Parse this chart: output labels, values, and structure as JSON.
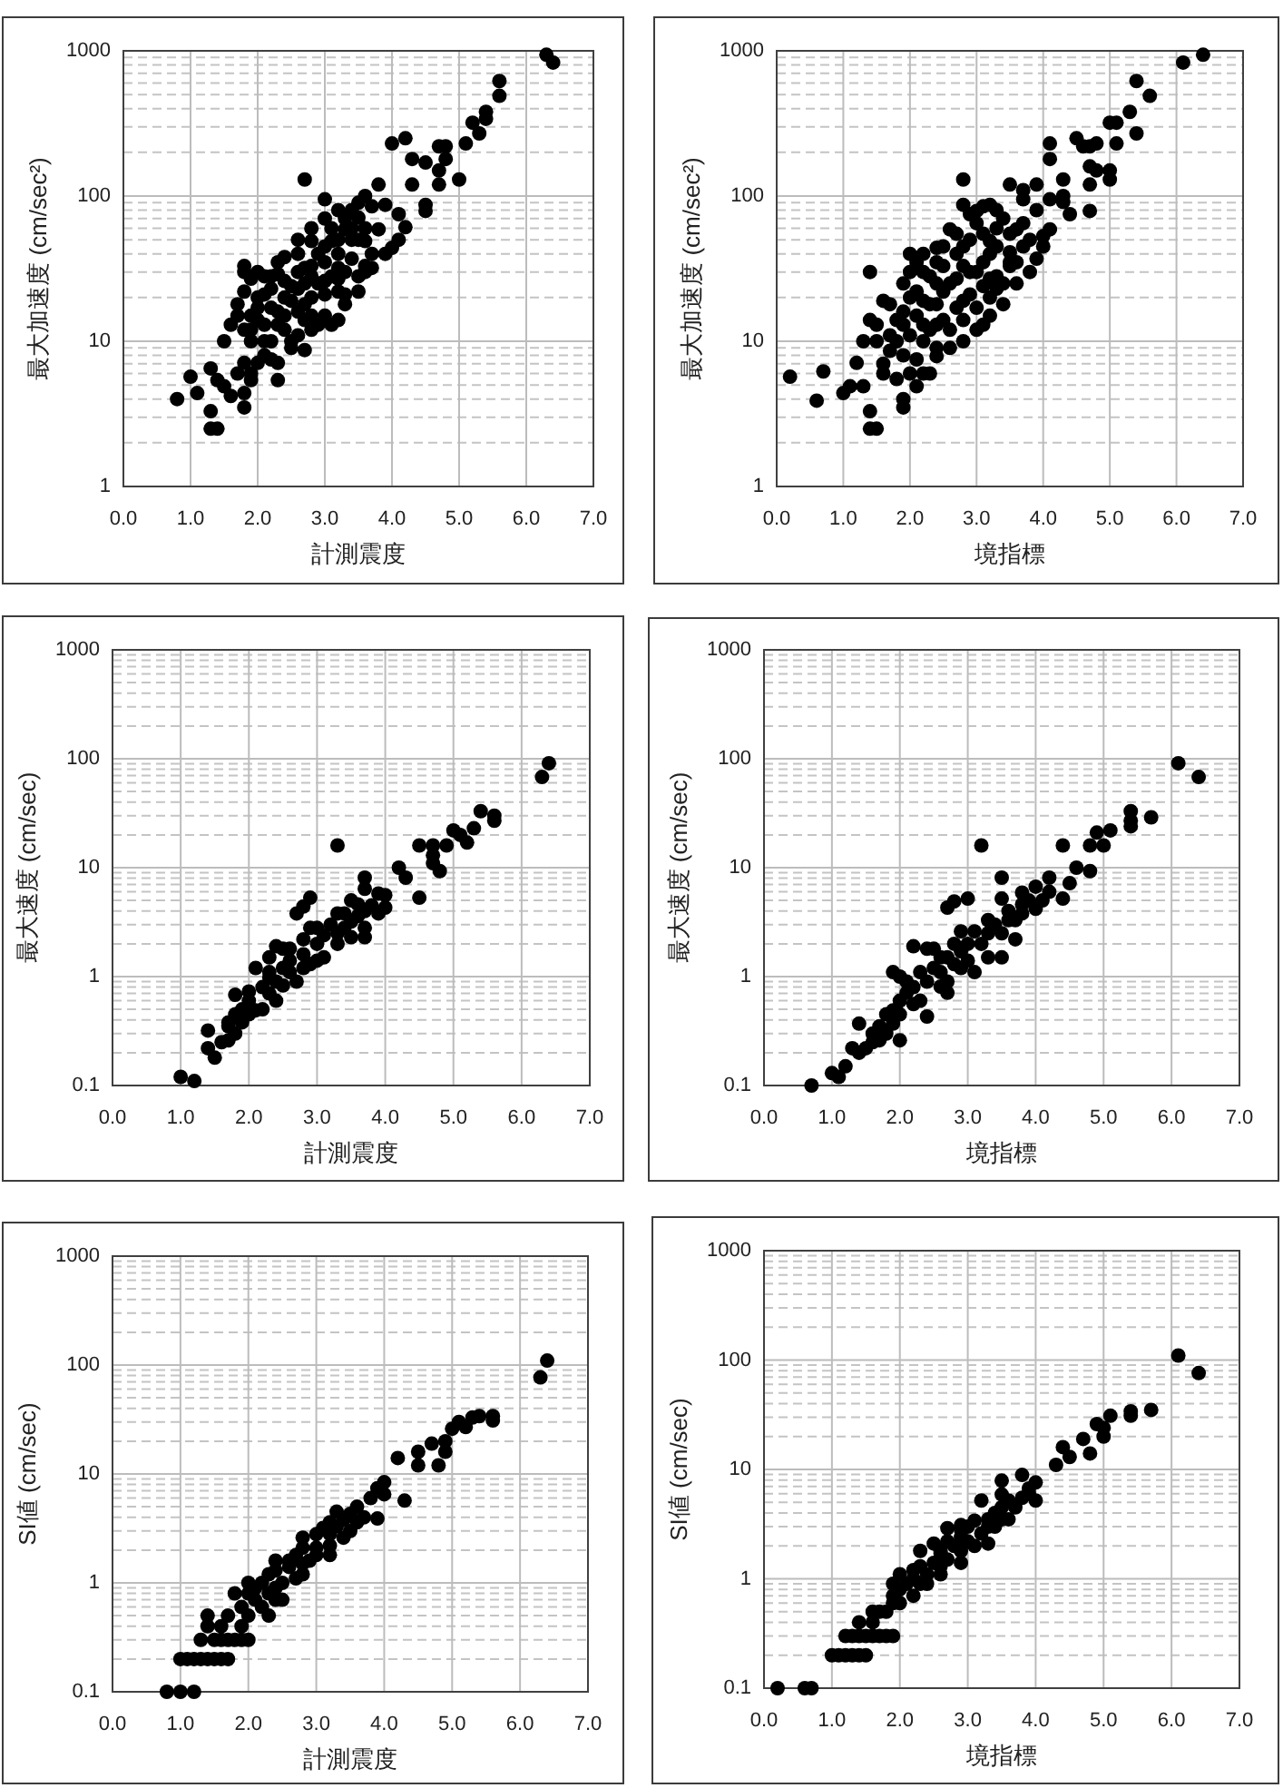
{
  "chart_data": [
    {
      "type": "scatter",
      "xlabel": "計測震度",
      "ylabel": "最大加速度 (cm/sec²)",
      "color": "#000000",
      "marker": "circle",
      "log": "y",
      "grid": true,
      "xlim": [
        0,
        7
      ],
      "ylim": [
        1,
        1000
      ],
      "xticks": [
        {
          "value": 0,
          "label": "0.0"
        },
        {
          "value": 1,
          "label": "1.0"
        },
        {
          "value": 2,
          "label": "2.0"
        },
        {
          "value": 3,
          "label": "3.0"
        },
        {
          "value": 4,
          "label": "4.0"
        },
        {
          "value": 5,
          "label": "5.0"
        },
        {
          "value": 6,
          "label": "6.0"
        },
        {
          "value": 7,
          "label": "7.0"
        }
      ],
      "yticks": [
        1,
        10,
        100,
        1000
      ],
      "x": [
        0.8,
        1.0,
        1.3,
        1.3,
        1.4,
        1.1,
        1.3,
        1.5,
        1.8,
        1.8,
        1.6,
        1.8,
        1.8,
        1.9,
        2.3,
        2.7,
        4.0,
        4.2,
        4.3,
        4.5,
        4.7,
        4.8,
        4.8,
        4.7,
        4.7,
        5.0,
        5.1,
        5.2,
        5.3,
        5.4,
        5.4,
        5.6,
        5.6,
        6.3,
        6.4,
        4.3,
        4.5,
        4.5,
        4.0,
        4.2,
        3.6,
        3.6,
        3.3,
        3.2,
        3.1,
        2.7,
        2.3,
        3.0,
        3.6,
        3.8,
        3.5,
        2.4,
        2.3,
        2.0,
        1.9,
        1.7,
        1.5,
        1.8,
        2.0,
        2.3,
        2.5,
        2.7,
        2.8,
        3.1,
        3.3,
        3.6,
        3.7,
        3.8,
        3.2,
        2.8,
        2.5,
        2.1,
        1.9,
        2.1,
        1.9,
        1.4,
        2.7,
        3.0,
        3.4,
        2.8,
        3.9,
        4.1,
        1.6,
        1.7,
        1.8,
        2.2,
        2.6,
        3.0,
        3.2,
        3.4,
        1.7,
        1.9,
        2.1,
        2.5,
        2.9,
        3.3,
        3.5,
        3.9,
        4.1,
        1.8,
        2.0,
        2.2,
        2.4,
        2.6,
        2.8,
        3.0,
        3.2,
        3.4,
        3.6,
        2.2,
        2.4,
        2.6,
        2.8,
        3.0,
        3.2,
        2.0,
        2.2,
        2.4,
        2.6,
        2.9,
        3.1,
        3.3,
        3.5,
        3.7,
        1.9,
        2.0,
        2.1,
        2.1,
        2.2,
        2.3,
        2.3,
        2.4,
        2.5,
        2.6,
        2.6,
        2.7,
        2.7,
        2.8,
        2.8,
        2.9,
        3.0,
        3.0,
        3.1,
        3.2,
        3.2,
        3.3,
        3.4,
        3.5,
        3.5,
        3.7
      ],
      "values": [
        4.0,
        5.7,
        3.3,
        2.5,
        2.5,
        4.4,
        6.5,
        4.9,
        3.5,
        4.4,
        4.2,
        33,
        30,
        5.4,
        5.4,
        130,
        230,
        250,
        180,
        170,
        220,
        220,
        180,
        150,
        120,
        130,
        230,
        320,
        270,
        380,
        340,
        490,
        620,
        940,
        830,
        120,
        87,
        79,
        44,
        61,
        33,
        30,
        21,
        14,
        13,
        8.7,
        7.1,
        95,
        100,
        120,
        71,
        38,
        29,
        30,
        27,
        15,
        10,
        7.1,
        7.1,
        13,
        19,
        25,
        33,
        49,
        59,
        49,
        40,
        59,
        27,
        15,
        10,
        10,
        15,
        21,
        10,
        5.4,
        14,
        21,
        37,
        49,
        87,
        75,
        13,
        18,
        22,
        28,
        40,
        70,
        80,
        80,
        6,
        6,
        8,
        9,
        13,
        18,
        22,
        40,
        50,
        12,
        14,
        17,
        20,
        23,
        28,
        35,
        40,
        50,
        60,
        10,
        12,
        16,
        20,
        26,
        32,
        20,
        23,
        26,
        30,
        40,
        60,
        70,
        90,
        85,
        12,
        17,
        13,
        28,
        7.5,
        16,
        35,
        15,
        24,
        11,
        50,
        18,
        32,
        12,
        60,
        25,
        15,
        45,
        28,
        22,
        50,
        30,
        60,
        28,
        50,
        32
      ]
    },
    {
      "type": "scatter",
      "xlabel": "境指標",
      "ylabel": "最大加速度 (cm/sec²)",
      "color": "#000000",
      "marker": "circle",
      "log": "y",
      "grid": true,
      "xlim": [
        0,
        7
      ],
      "ylim": [
        1,
        1000
      ],
      "xticks": [
        {
          "value": 0,
          "label": "0.0"
        },
        {
          "value": 1,
          "label": "1.0"
        },
        {
          "value": 2,
          "label": "2.0"
        },
        {
          "value": 3,
          "label": "3.0"
        },
        {
          "value": 4,
          "label": "4.0"
        },
        {
          "value": 5,
          "label": "5.0"
        },
        {
          "value": 6,
          "label": "6.0"
        },
        {
          "value": 7,
          "label": "7.0"
        }
      ],
      "yticks": [
        1,
        10,
        100,
        1000
      ],
      "x": [
        0.2,
        0.6,
        0.7,
        1.0,
        1.4,
        1.4,
        1.4,
        1.5,
        1.9,
        1.1,
        1.3,
        1.2,
        1.6,
        2.0,
        2.2,
        2.8,
        2.8,
        3.0,
        3.5,
        4.1,
        4.1,
        4.3,
        4.5,
        4.6,
        4.7,
        4.8,
        4.7,
        4.8,
        4.7,
        4.7,
        5.0,
        5.0,
        5.0,
        5.1,
        5.1,
        5.3,
        5.4,
        5.4,
        5.6,
        6.1,
        6.4,
        4.3,
        4.0,
        4.1,
        4.4,
        3.9,
        3.5,
        3.3,
        3.1,
        2.8,
        2.4,
        2.3,
        2.1,
        1.9,
        1.6,
        1.8,
        1.5,
        2.0,
        2.4,
        2.6,
        3.2,
        3.7,
        3.6,
        3.2,
        2.8,
        2.4,
        2.2,
        1.9,
        2.8,
        2.4,
        3.2,
        3.5,
        2.2,
        1.7,
        1.3,
        1.4,
        1.5,
        1.7,
        1.9,
        2.1,
        2.5,
        2.7,
        2.9,
        3.1,
        3.3,
        3.7,
        3.9,
        1.6,
        1.8,
        2.0,
        2.2,
        2.6,
        3.0,
        3.2,
        3.4,
        3.6,
        3.8,
        4.0,
        1.7,
        1.9,
        2.1,
        2.3,
        2.5,
        2.7,
        2.9,
        3.1,
        3.3,
        3.5,
        3.7,
        3.9,
        1.9,
        2.3,
        2.5,
        2.7,
        2.9,
        3.1,
        3.3,
        3.5,
        3.7,
        2.1,
        2.3,
        2.5,
        2.7,
        2.9,
        3.1,
        3.3,
        4.1,
        4.3,
        1.8,
        2.0,
        2.0,
        2.1,
        2.2,
        2.2,
        2.4,
        2.4,
        2.4,
        2.6,
        2.6,
        2.8,
        2.8,
        3.0,
        3.0,
        3.0,
        3.2,
        3.2,
        3.4,
        3.4,
        3.6,
        3.8
      ],
      "values": [
        5.7,
        3.9,
        6.2,
        4.4,
        30,
        3.3,
        2.5,
        2.5,
        3.5,
        4.9,
        4.9,
        7.1,
        19,
        40,
        40,
        130,
        87,
        79,
        120,
        230,
        180,
        130,
        250,
        220,
        220,
        230,
        160,
        150,
        120,
        79,
        130,
        150,
        320,
        320,
        230,
        380,
        270,
        620,
        490,
        830,
        940,
        91,
        53,
        59,
        75,
        37,
        33,
        23,
        13,
        10,
        7.9,
        6.0,
        4.9,
        4.0,
        6.0,
        10,
        13,
        30,
        44,
        59,
        87,
        95,
        59,
        49,
        33,
        25,
        19,
        16,
        19,
        13,
        27,
        41,
        10,
        8.6,
        10,
        14,
        10,
        18,
        25,
        35,
        45,
        55,
        75,
        85,
        80,
        110,
        120,
        7,
        5.5,
        6,
        6,
        9,
        12,
        15,
        18,
        25,
        30,
        45,
        11,
        13,
        15,
        18,
        22,
        27,
        30,
        35,
        45,
        55,
        65,
        80,
        8,
        12,
        14,
        17,
        21,
        24,
        28,
        35,
        45,
        22,
        28,
        33,
        40,
        50,
        55,
        60,
        95,
        100,
        14,
        11,
        20,
        7.5,
        13,
        30,
        9,
        18,
        35,
        12,
        25,
        14,
        45,
        17,
        30,
        65,
        20,
        40,
        25,
        70,
        35,
        50
      ]
    },
    {
      "type": "scatter",
      "xlabel": "計測震度",
      "ylabel": "最大速度 (cm/sec)",
      "color": "#000000",
      "marker": "circle",
      "log": "y",
      "grid": true,
      "xlim": [
        0,
        7
      ],
      "ylim": [
        0.1,
        1000
      ],
      "xticks": [
        {
          "value": 0,
          "label": "0.0"
        },
        {
          "value": 1,
          "label": "1.0"
        },
        {
          "value": 2,
          "label": "2.0"
        },
        {
          "value": 3,
          "label": "3.0"
        },
        {
          "value": 4,
          "label": "4.0"
        },
        {
          "value": 5,
          "label": "5.0"
        },
        {
          "value": 6,
          "label": "6.0"
        },
        {
          "value": 7,
          "label": "7.0"
        }
      ],
      "yticks": [
        0.1,
        1,
        10,
        100,
        1000
      ],
      "x": [
        1.0,
        1.2,
        1.4,
        1.4,
        1.8,
        1.7,
        1.5,
        2.1,
        2.0,
        2.4,
        2.5,
        2.7,
        2.8,
        2.9,
        2.9,
        3.3,
        3.7,
        3.6,
        4.2,
        4.3,
        4.5,
        4.5,
        4.7,
        4.7,
        4.8,
        4.9,
        4.7,
        5.0,
        5.1,
        5.2,
        5.3,
        5.4,
        5.6,
        5.6,
        6.3,
        6.4,
        2.5,
        2.8,
        3.5,
        3.9,
        4.0,
        3.7,
        3.0,
        2.6,
        2.3,
        2.1,
        1.9,
        1.7,
        3.0,
        3.3,
        3.7,
        2.6,
        2.3,
        3.0,
        3.3,
        3.5,
        3.7,
        1.6,
        1.7,
        1.8,
        1.8,
        1.9,
        2.0,
        2.0,
        2.2,
        2.2,
        2.3,
        2.3,
        2.4,
        2.4,
        2.5,
        2.6,
        2.7,
        2.8,
        2.8,
        2.9,
        3.1,
        3.1,
        3.2,
        3.3,
        3.4,
        3.4,
        3.5,
        3.6,
        3.7,
        3.8,
        3.9,
        4.0
      ],
      "values": [
        0.12,
        0.11,
        0.32,
        0.22,
        0.68,
        0.38,
        0.18,
        1.2,
        0.73,
        1.9,
        1.8,
        3.8,
        4.4,
        5.3,
        2.8,
        16,
        8.1,
        4.6,
        10,
        8.1,
        16,
        5.3,
        16,
        13,
        9.3,
        16,
        11,
        22,
        20,
        17,
        23,
        33,
        30,
        27,
        68,
        91,
        0.83,
        1.2,
        2.3,
        3.8,
        5.6,
        2.8,
        2.0,
        1.4,
        0.98,
        0.49,
        0.38,
        0.26,
        1.4,
        2.0,
        2.3,
        1.8,
        1.5,
        2.8,
        3.8,
        5.0,
        6.4,
        0.25,
        0.35,
        0.3,
        0.45,
        0.5,
        0.45,
        0.6,
        0.8,
        0.5,
        0.7,
        1.1,
        0.9,
        0.6,
        1.2,
        1.1,
        0.9,
        1.6,
        2.2,
        1.3,
        2.4,
        1.5,
        3.0,
        2.5,
        2.8,
        3.8,
        3.2,
        3.6,
        4.0,
        4.5,
        5.8,
        4.3
      ]
    },
    {
      "type": "scatter",
      "xlabel": "境指標",
      "ylabel": "最大速度 (cm/sec)",
      "color": "#000000",
      "marker": "circle",
      "log": "y",
      "grid": true,
      "xlim": [
        0,
        7
      ],
      "ylim": [
        0.1,
        1000
      ],
      "xticks": [
        {
          "value": 0,
          "label": "0.0"
        },
        {
          "value": 1,
          "label": "1.0"
        },
        {
          "value": 2,
          "label": "2.0"
        },
        {
          "value": 3,
          "label": "3.0"
        },
        {
          "value": 4,
          "label": "4.0"
        },
        {
          "value": 5,
          "label": "5.0"
        },
        {
          "value": 6,
          "label": "6.0"
        },
        {
          "value": 7,
          "label": "7.0"
        }
      ],
      "yticks": [
        0.1,
        1,
        10,
        100,
        1000
      ],
      "x": [
        0.7,
        1.0,
        1.1,
        1.2,
        1.4,
        1.3,
        1.9,
        2.2,
        2.4,
        2.5,
        2.7,
        2.8,
        3.0,
        3.2,
        3.5,
        3.5,
        3.8,
        3.8,
        4.0,
        4.2,
        4.4,
        4.4,
        4.5,
        4.6,
        4.8,
        4.8,
        4.9,
        5.0,
        5.1,
        5.4,
        5.4,
        5.4,
        5.7,
        6.1,
        6.4,
        2.0,
        2.6,
        2.9,
        3.3,
        3.6,
        4.0,
        3.3,
        2.9,
        2.6,
        2.2,
        1.9,
        1.7,
        1.4,
        2.0,
        2.4,
        2.7,
        3.1,
        3.5,
        3.7,
        1.9,
        1.6,
        2.9,
        2.1,
        1.5,
        1.6,
        1.7,
        1.8,
        1.8,
        2.0,
        2.0,
        2.1,
        2.2,
        2.3,
        2.3,
        2.4,
        2.5,
        2.6,
        2.7,
        2.7,
        2.8,
        2.8,
        3.0,
        3.0,
        3.1,
        3.2,
        3.3,
        3.4,
        3.5,
        3.6,
        3.7,
        3.8,
        3.9,
        4.1,
        4.2
      ],
      "values": [
        0.1,
        0.13,
        0.12,
        0.15,
        0.37,
        0.22,
        1.1,
        1.9,
        1.8,
        1.8,
        4.3,
        4.9,
        5.2,
        16,
        8.1,
        5.2,
        5.9,
        4.6,
        6.7,
        8.1,
        16,
        5.2,
        7.2,
        10,
        16,
        9.3,
        21,
        16,
        22,
        33,
        24,
        27,
        29,
        91,
        68,
        1.0,
        1.5,
        2.6,
        3.3,
        3.3,
        4.2,
        1.5,
        1.2,
        0.81,
        0.56,
        0.37,
        0.26,
        0.2,
        0.26,
        0.43,
        0.71,
        1.1,
        1.5,
        2.2,
        0.49,
        0.3,
        1.7,
        0.71,
        0.22,
        0.25,
        0.35,
        0.3,
        0.45,
        0.45,
        0.6,
        0.9,
        0.8,
        0.6,
        1.1,
        0.9,
        1.2,
        1.1,
        1.5,
        0.9,
        2.0,
        1.3,
        2.0,
        1.4,
        2.6,
        2.0,
        2.5,
        3.0,
        2.5,
        4.0,
        3.3,
        3.8,
        5.0,
        5.0,
        6.0
      ]
    },
    {
      "type": "scatter",
      "xlabel": "計測震度",
      "ylabel": "SI値 (cm/sec)",
      "color": "#000000",
      "marker": "circle",
      "log": "y",
      "grid": true,
      "xlim": [
        0,
        7
      ],
      "ylim": [
        0.1,
        1000
      ],
      "xticks": [
        {
          "value": 0,
          "label": "0.0"
        },
        {
          "value": 1,
          "label": "1.0"
        },
        {
          "value": 2,
          "label": "2.0"
        },
        {
          "value": 3,
          "label": "3.0"
        },
        {
          "value": 4,
          "label": "4.0"
        },
        {
          "value": 5,
          "label": "5.0"
        },
        {
          "value": 6,
          "label": "6.0"
        },
        {
          "value": 7,
          "label": "7.0"
        }
      ],
      "yticks": [
        0.1,
        1,
        10,
        100,
        1000
      ],
      "x": [
        0.8,
        1.0,
        1.2,
        1.0,
        1.1,
        1.2,
        1.3,
        1.4,
        1.5,
        1.6,
        1.7,
        1.3,
        1.5,
        1.6,
        1.7,
        1.8,
        1.9,
        2.0,
        1.4,
        1.4,
        1.8,
        2.0,
        1.9,
        2.3,
        2.3,
        2.5,
        2.8,
        3.0,
        3.2,
        4.0,
        4.2,
        4.3,
        4.5,
        4.5,
        4.7,
        4.8,
        4.9,
        4.9,
        5.0,
        5.1,
        5.2,
        5.3,
        5.4,
        5.6,
        5.6,
        6.3,
        6.4,
        3.9,
        3.3,
        3.0,
        2.4,
        2.8,
        3.2,
        3.5,
        3.9,
        2.3,
        2.1,
        2.4,
        2.8,
        2.6,
        3.2,
        3.5,
        1.7,
        1.6,
        1.9,
        2.0,
        2.0,
        2.1,
        2.2,
        2.2,
        2.4,
        2.4,
        2.5,
        2.6,
        2.7,
        2.7,
        2.8,
        2.9,
        3.0,
        3.1,
        3.2,
        3.3,
        3.4,
        3.4,
        3.6,
        3.6,
        3.7,
        3.8,
        4.0
      ],
      "values": [
        0.1,
        0.1,
        0.1,
        0.2,
        0.2,
        0.2,
        0.2,
        0.2,
        0.2,
        0.2,
        0.2,
        0.3,
        0.3,
        0.3,
        0.3,
        0.3,
        0.3,
        0.3,
        0.5,
        0.4,
        0.8,
        1.0,
        0.4,
        1.2,
        0.5,
        0.7,
        2.6,
        2.8,
        3.6,
        8.4,
        14,
        5.7,
        12,
        16,
        19,
        12,
        16,
        20,
        26,
        30,
        27,
        33,
        34,
        34,
        31,
        77,
        110,
        7.4,
        4.5,
        2.1,
        0.9,
        1.2,
        1.8,
        3.0,
        3.9,
        0.8,
        0.7,
        1.6,
        2.1,
        1.6,
        2.8,
        4.3,
        0.5,
        0.4,
        0.6,
        0.5,
        0.8,
        0.9,
        0.6,
        1.0,
        0.7,
        1.3,
        1.0,
        1.4,
        1.1,
        1.8,
        1.5,
        1.6,
        1.8,
        3.2,
        2.2,
        3.3,
        2.6,
        3.8,
        3.6,
        5.0,
        4.0,
        6.0,
        6.5
      ]
    },
    {
      "type": "scatter",
      "xlabel": "境指標",
      "ylabel": "SI値 (cm/sec)",
      "color": "#000000",
      "marker": "circle",
      "log": "y",
      "grid": true,
      "xlim": [
        0,
        7
      ],
      "ylim": [
        0.1,
        1000
      ],
      "xticks": [
        {
          "value": 0,
          "label": "0.0"
        },
        {
          "value": 1,
          "label": "1.0"
        },
        {
          "value": 2,
          "label": "2.0"
        },
        {
          "value": 3,
          "label": "3.0"
        },
        {
          "value": 4,
          "label": "4.0"
        },
        {
          "value": 5,
          "label": "5.0"
        },
        {
          "value": 6,
          "label": "6.0"
        },
        {
          "value": 7,
          "label": "7.0"
        }
      ],
      "yticks": [
        0.1,
        1,
        10,
        100,
        1000
      ],
      "x": [
        0.2,
        0.6,
        0.7,
        1.0,
        1.1,
        1.2,
        1.3,
        1.4,
        1.5,
        1.2,
        1.3,
        1.4,
        1.5,
        1.6,
        1.7,
        1.8,
        1.9,
        1.4,
        1.6,
        1.6,
        2.0,
        1.9,
        2.3,
        2.5,
        2.7,
        2.9,
        3.2,
        3.5,
        3.5,
        3.8,
        3.9,
        4.0,
        4.3,
        4.4,
        4.5,
        4.7,
        4.8,
        4.9,
        5.0,
        5.0,
        5.1,
        5.4,
        5.4,
        5.7,
        6.1,
        6.4,
        2.4,
        2.6,
        2.9,
        3.3,
        3.6,
        4.0,
        3.5,
        2.6,
        2.9,
        2.2,
        1.9,
        1.8,
        3.3,
        3.6,
        1.7,
        1.9,
        2.0,
        2.0,
        2.1,
        2.2,
        2.2,
        2.3,
        2.3,
        2.4,
        2.5,
        2.6,
        2.6,
        2.7,
        2.7,
        2.8,
        2.9,
        2.9,
        3.0,
        3.0,
        3.1,
        3.1,
        3.2,
        3.3,
        3.4,
        3.4,
        3.5,
        3.7,
        3.8,
        3.9
      ],
      "values": [
        0.1,
        0.1,
        0.1,
        0.2,
        0.2,
        0.2,
        0.2,
        0.2,
        0.2,
        0.3,
        0.3,
        0.3,
        0.3,
        0.3,
        0.3,
        0.3,
        0.3,
        0.4,
        0.4,
        0.5,
        1.1,
        0.9,
        1.8,
        2.1,
        2.9,
        3.1,
        5.2,
        7.9,
        5.9,
        8.9,
        6.7,
        7.6,
        11,
        16,
        13,
        19,
        14,
        26,
        24,
        20,
        31,
        34,
        31,
        35,
        110,
        76,
        0.9,
        1.1,
        1.4,
        2.1,
        3.5,
        5.2,
        3.5,
        1.8,
        2.4,
        1.2,
        0.6,
        0.5,
        3.5,
        5.2,
        0.5,
        0.7,
        0.6,
        0.8,
        0.9,
        0.7,
        1.0,
        0.9,
        1.3,
        1.1,
        1.4,
        1.3,
        1.7,
        1.5,
        2.2,
        2.0,
        1.8,
        2.8,
        2.2,
        3.0,
        2.0,
        3.4,
        2.6,
        3.0,
        4.0,
        3.0,
        4.5,
        4.5,
        5.5,
        6.0
      ]
    }
  ]
}
